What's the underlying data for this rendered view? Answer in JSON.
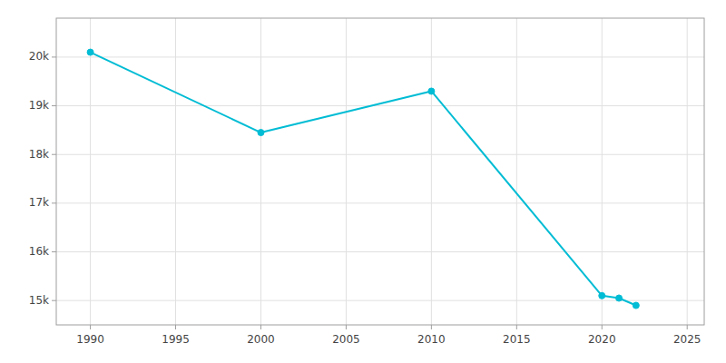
{
  "chart_data": {
    "type": "line",
    "x": [
      1990,
      2000,
      2010,
      2020,
      2021,
      2022
    ],
    "values": [
      20100,
      18450,
      19300,
      15100,
      15050,
      14900
    ],
    "color": "#00BCD4",
    "marker": "circle",
    "xlim": [
      1988,
      2026
    ],
    "ylim": [
      14500,
      20800
    ],
    "xticks": [
      1990,
      1995,
      2000,
      2005,
      2010,
      2015,
      2020,
      2025
    ],
    "yticks": [
      {
        "value": 15000,
        "label": "15k"
      },
      {
        "value": 16000,
        "label": "16k"
      },
      {
        "value": 17000,
        "label": "17k"
      },
      {
        "value": 18000,
        "label": "18k"
      },
      {
        "value": 19000,
        "label": "19k"
      },
      {
        "value": 20000,
        "label": "20k"
      }
    ],
    "grid": true
  }
}
